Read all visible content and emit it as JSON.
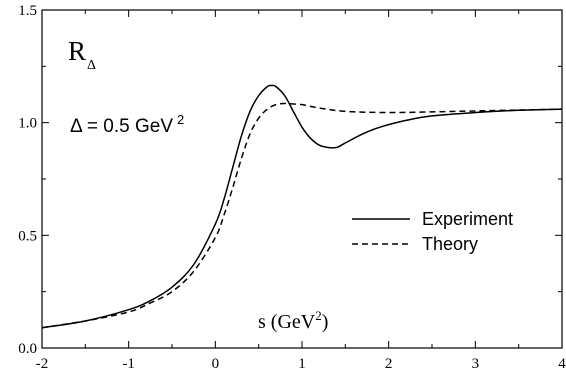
{
  "chart_data": {
    "type": "line",
    "xlabel": "s (GeV",
    "xlabel_sup": "2",
    "xlabel_close": ")",
    "ylabel": "",
    "plot_label": "R",
    "plot_label_sub": "Δ",
    "delta_label": "Δ = 0.5 GeV",
    "delta_label_sup": "2",
    "xlim": [
      -2,
      4
    ],
    "ylim": [
      0,
      1.5
    ],
    "x_ticks": [
      "-2",
      "-1",
      "0",
      "1",
      "2",
      "3",
      "4"
    ],
    "y_ticks": [
      "0.0",
      "0.5",
      "1.0",
      "1.5"
    ],
    "grid": false,
    "legend_position": "center-right",
    "series": [
      {
        "name": "Experiment",
        "style": "solid",
        "x": [
          -2.0,
          -1.5,
          -1.0,
          -0.75,
          -0.5,
          -0.25,
          0.0,
          0.1,
          0.2,
          0.3,
          0.4,
          0.5,
          0.6,
          0.65,
          0.7,
          0.8,
          0.9,
          1.0,
          1.1,
          1.2,
          1.3,
          1.4,
          1.5,
          1.7,
          1.9,
          2.2,
          2.5,
          3.0,
          3.5,
          4.0
        ],
        "y": [
          0.09,
          0.12,
          0.17,
          0.21,
          0.27,
          0.37,
          0.55,
          0.66,
          0.8,
          0.94,
          1.05,
          1.12,
          1.16,
          1.165,
          1.16,
          1.12,
          1.05,
          0.98,
          0.93,
          0.9,
          0.89,
          0.89,
          0.91,
          0.95,
          0.98,
          1.01,
          1.03,
          1.045,
          1.055,
          1.06
        ]
      },
      {
        "name": "Theory",
        "style": "dashed",
        "x": [
          -2.0,
          -1.5,
          -1.0,
          -0.75,
          -0.5,
          -0.25,
          0.0,
          0.1,
          0.2,
          0.3,
          0.4,
          0.5,
          0.6,
          0.7,
          0.8,
          0.9,
          1.0,
          1.2,
          1.5,
          2.0,
          2.5,
          3.0,
          3.5,
          4.0
        ],
        "y": [
          0.09,
          0.12,
          0.16,
          0.2,
          0.25,
          0.34,
          0.49,
          0.59,
          0.71,
          0.84,
          0.95,
          1.02,
          1.06,
          1.08,
          1.085,
          1.083,
          1.08,
          1.065,
          1.05,
          1.045,
          1.048,
          1.052,
          1.056,
          1.06
        ]
      }
    ]
  }
}
